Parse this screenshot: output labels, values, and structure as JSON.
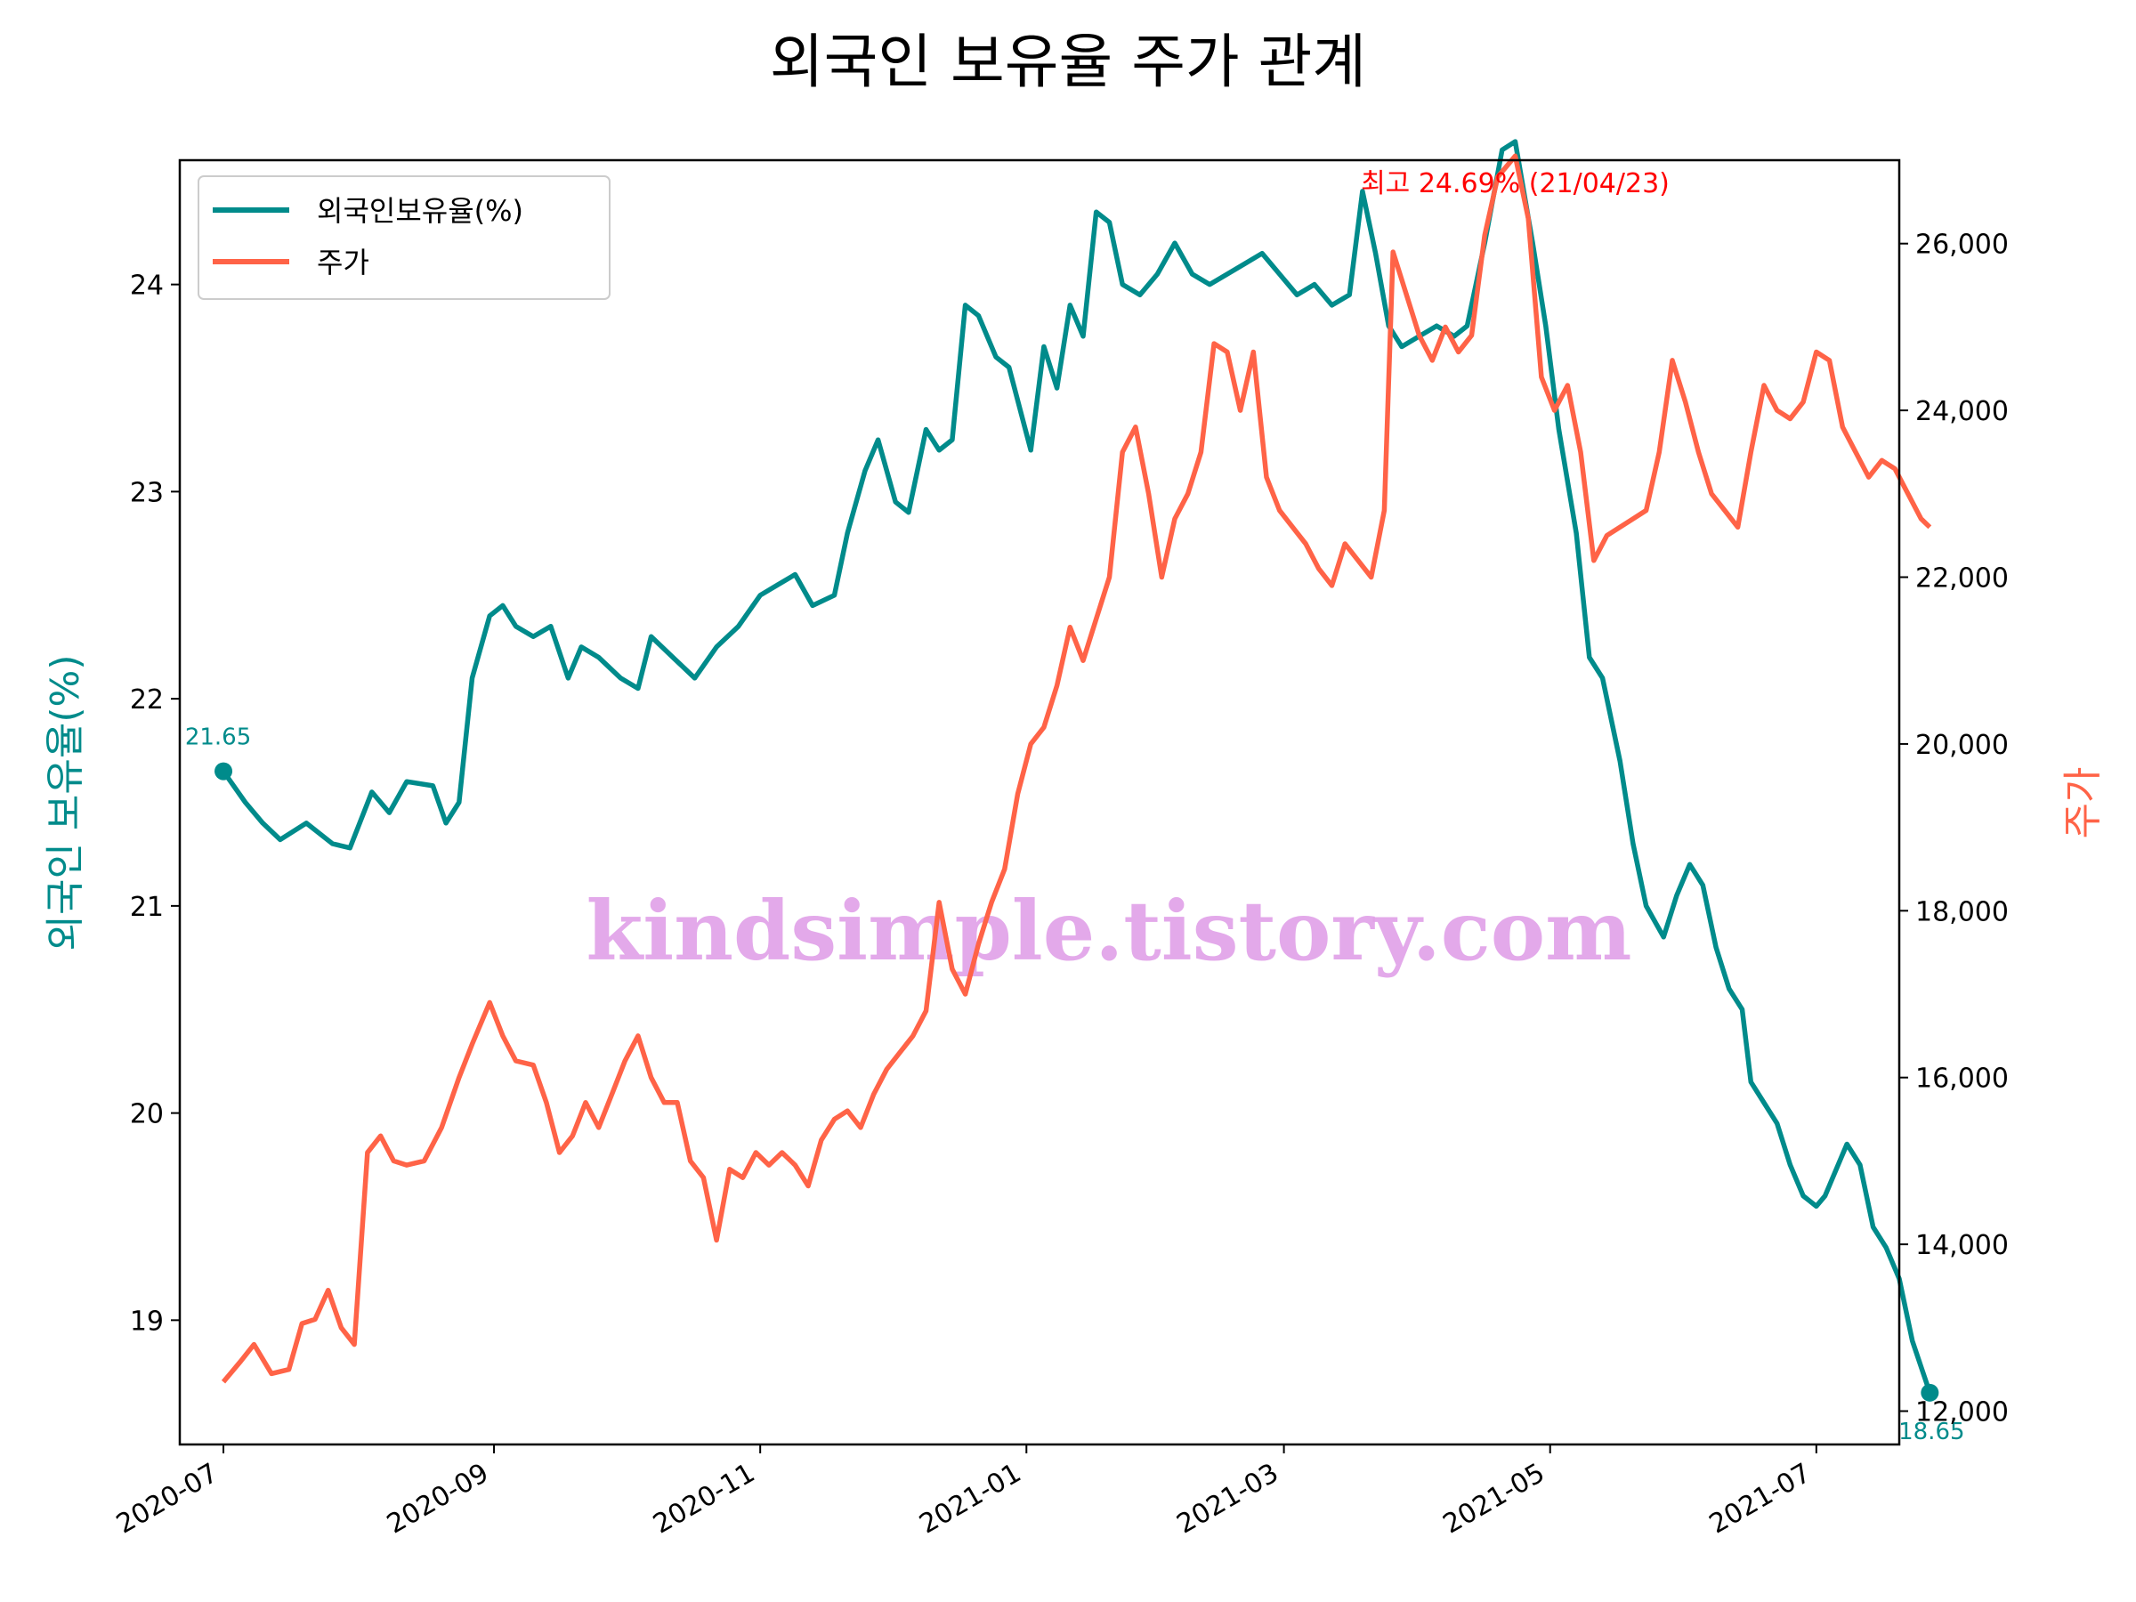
{
  "chart_data": {
    "type": "line",
    "title": "외국인 보유율 주가 관계",
    "ylabel_left": "외국인 보유율(%)",
    "ylabel_right": "주가",
    "colors": {
      "foreign": "#008b8b",
      "price": "#ff6347",
      "peak": "#ff0000",
      "watermark": "#e0a0e8"
    },
    "x_range": [
      "2020-06-21",
      "2021-07-20"
    ],
    "y_left_range": [
      18.4,
      24.6
    ],
    "y_right_range": [
      11600,
      27000
    ],
    "x_ticks": [
      "2020-07",
      "2020-09",
      "2020-11",
      "2021-01",
      "2021-03",
      "2021-05",
      "2021-07"
    ],
    "y_left_ticks": [
      "19",
      "20",
      "21",
      "22",
      "23",
      "24"
    ],
    "y_right_ticks": [
      "12,000",
      "14,000",
      "16,000",
      "18,000",
      "20,000",
      "22,000",
      "24,000",
      "26,000"
    ],
    "legend": {
      "position": "upper left",
      "entries": [
        "외국인보유율(%)",
        "주가"
      ]
    },
    "start_annotation": "21.65",
    "end_annotation": "18.65",
    "peak_annotation": "최고 24.69% (21/04/23)",
    "watermark": "kindsimple.tistory.com",
    "series": [
      {
        "name": "외국인보유율(%)",
        "points": [
          [
            "2020-07-01",
            21.65
          ],
          [
            "2020-07-06",
            21.5
          ],
          [
            "2020-07-10",
            21.4
          ],
          [
            "2020-07-14",
            21.32
          ],
          [
            "2020-07-20",
            21.4
          ],
          [
            "2020-07-26",
            21.3
          ],
          [
            "2020-07-30",
            21.28
          ],
          [
            "2020-08-04",
            21.55
          ],
          [
            "2020-08-08",
            21.45
          ],
          [
            "2020-08-12",
            21.6
          ],
          [
            "2020-08-18",
            21.58
          ],
          [
            "2020-08-21",
            21.4
          ],
          [
            "2020-08-24",
            21.5
          ],
          [
            "2020-08-27",
            22.1
          ],
          [
            "2020-08-31",
            22.4
          ],
          [
            "2020-09-03",
            22.45
          ],
          [
            "2020-09-06",
            22.35
          ],
          [
            "2020-09-10",
            22.3
          ],
          [
            "2020-09-14",
            22.35
          ],
          [
            "2020-09-18",
            22.1
          ],
          [
            "2020-09-21",
            22.25
          ],
          [
            "2020-09-25",
            22.2
          ],
          [
            "2020-09-30",
            22.1
          ],
          [
            "2020-10-04",
            22.05
          ],
          [
            "2020-10-07",
            22.3
          ],
          [
            "2020-10-12",
            22.2
          ],
          [
            "2020-10-17",
            22.1
          ],
          [
            "2020-10-22",
            22.25
          ],
          [
            "2020-10-27",
            22.35
          ],
          [
            "2020-11-01",
            22.5
          ],
          [
            "2020-11-05",
            22.55
          ],
          [
            "2020-11-09",
            22.6
          ],
          [
            "2020-11-13",
            22.45
          ],
          [
            "2020-11-18",
            22.5
          ],
          [
            "2020-11-21",
            22.8
          ],
          [
            "2020-11-25",
            23.1
          ],
          [
            "2020-11-28",
            23.25
          ],
          [
            "2020-12-02",
            22.95
          ],
          [
            "2020-12-05",
            22.9
          ],
          [
            "2020-12-09",
            23.3
          ],
          [
            "2020-12-12",
            23.2
          ],
          [
            "2020-12-15",
            23.25
          ],
          [
            "2020-12-18",
            23.9
          ],
          [
            "2020-12-21",
            23.85
          ],
          [
            "2020-12-25",
            23.65
          ],
          [
            "2020-12-28",
            23.6
          ],
          [
            "2021-01-02",
            23.2
          ],
          [
            "2021-01-05",
            23.7
          ],
          [
            "2021-01-08",
            23.5
          ],
          [
            "2021-01-11",
            23.9
          ],
          [
            "2021-01-14",
            23.75
          ],
          [
            "2021-01-17",
            24.35
          ],
          [
            "2021-01-20",
            24.3
          ],
          [
            "2021-01-23",
            24.0
          ],
          [
            "2021-01-27",
            23.95
          ],
          [
            "2021-01-31",
            24.05
          ],
          [
            "2021-02-04",
            24.2
          ],
          [
            "2021-02-08",
            24.05
          ],
          [
            "2021-02-12",
            24.0
          ],
          [
            "2021-02-16",
            24.05
          ],
          [
            "2021-02-20",
            24.1
          ],
          [
            "2021-02-24",
            24.15
          ],
          [
            "2021-02-28",
            24.05
          ],
          [
            "2021-03-04",
            23.95
          ],
          [
            "2021-03-08",
            24.0
          ],
          [
            "2021-03-12",
            23.9
          ],
          [
            "2021-03-16",
            23.95
          ],
          [
            "2021-03-19",
            24.45
          ],
          [
            "2021-03-22",
            24.15
          ],
          [
            "2021-03-25",
            23.8
          ],
          [
            "2021-03-28",
            23.7
          ],
          [
            "2021-04-01",
            23.75
          ],
          [
            "2021-04-05",
            23.8
          ],
          [
            "2021-04-09",
            23.75
          ],
          [
            "2021-04-12",
            23.8
          ],
          [
            "2021-04-16",
            24.2
          ],
          [
            "2021-04-20",
            24.65
          ],
          [
            "2021-04-23",
            24.69
          ],
          [
            "2021-04-27",
            24.2
          ],
          [
            "2021-04-30",
            23.8
          ],
          [
            "2021-05-03",
            23.3
          ],
          [
            "2021-05-07",
            22.8
          ],
          [
            "2021-05-10",
            22.2
          ],
          [
            "2021-05-13",
            22.1
          ],
          [
            "2021-05-17",
            21.7
          ],
          [
            "2021-05-20",
            21.3
          ],
          [
            "2021-05-23",
            21.0
          ],
          [
            "2021-05-27",
            20.85
          ],
          [
            "2021-05-30",
            21.05
          ],
          [
            "2021-06-02",
            21.2
          ],
          [
            "2021-06-05",
            21.1
          ],
          [
            "2021-06-08",
            20.8
          ],
          [
            "2021-06-11",
            20.6
          ],
          [
            "2021-06-14",
            20.5
          ],
          [
            "2021-06-16",
            20.15
          ],
          [
            "2021-06-19",
            20.05
          ],
          [
            "2021-06-22",
            19.95
          ],
          [
            "2021-06-25",
            19.75
          ],
          [
            "2021-06-28",
            19.6
          ],
          [
            "2021-07-01",
            19.55
          ],
          [
            "2021-07-03",
            19.6
          ],
          [
            "2021-07-05",
            19.7
          ],
          [
            "2021-07-08",
            19.85
          ],
          [
            "2021-07-11",
            19.75
          ],
          [
            "2021-07-14",
            19.45
          ],
          [
            "2021-07-17",
            19.35
          ],
          [
            "2021-07-20",
            19.2
          ],
          [
            "2021-07-23",
            18.9
          ],
          [
            "2021-07-27",
            18.65
          ]
        ]
      },
      {
        "name": "주가",
        "points": [
          [
            "2020-07-01",
            12350
          ],
          [
            "2020-07-05",
            12600
          ],
          [
            "2020-07-08",
            12800
          ],
          [
            "2020-07-12",
            12450
          ],
          [
            "2020-07-16",
            12500
          ],
          [
            "2020-07-19",
            13050
          ],
          [
            "2020-07-22",
            13100
          ],
          [
            "2020-07-25",
            13450
          ],
          [
            "2020-07-28",
            13000
          ],
          [
            "2020-07-31",
            12800
          ],
          [
            "2020-08-03",
            15100
          ],
          [
            "2020-08-06",
            15300
          ],
          [
            "2020-08-09",
            15000
          ],
          [
            "2020-08-12",
            14950
          ],
          [
            "2020-08-16",
            15000
          ],
          [
            "2020-08-20",
            15400
          ],
          [
            "2020-08-24",
            16000
          ],
          [
            "2020-08-27",
            16400
          ],
          [
            "2020-08-31",
            16900
          ],
          [
            "2020-09-03",
            16500
          ],
          [
            "2020-09-06",
            16200
          ],
          [
            "2020-09-10",
            16150
          ],
          [
            "2020-09-13",
            15700
          ],
          [
            "2020-09-16",
            15100
          ],
          [
            "2020-09-19",
            15300
          ],
          [
            "2020-09-22",
            15700
          ],
          [
            "2020-09-25",
            15400
          ],
          [
            "2020-09-28",
            15800
          ],
          [
            "2020-10-01",
            16200
          ],
          [
            "2020-10-04",
            16500
          ],
          [
            "2020-10-07",
            16000
          ],
          [
            "2020-10-10",
            15700
          ],
          [
            "2020-10-13",
            15700
          ],
          [
            "2020-10-16",
            15000
          ],
          [
            "2020-10-19",
            14800
          ],
          [
            "2020-10-22",
            14050
          ],
          [
            "2020-10-25",
            14900
          ],
          [
            "2020-10-28",
            14800
          ],
          [
            "2020-10-31",
            15100
          ],
          [
            "2020-11-03",
            14950
          ],
          [
            "2020-11-06",
            15100
          ],
          [
            "2020-11-09",
            14950
          ],
          [
            "2020-11-12",
            14700
          ],
          [
            "2020-11-15",
            15250
          ],
          [
            "2020-11-18",
            15500
          ],
          [
            "2020-11-21",
            15600
          ],
          [
            "2020-11-24",
            15400
          ],
          [
            "2020-11-27",
            15800
          ],
          [
            "2020-11-30",
            16100
          ],
          [
            "2020-12-03",
            16300
          ],
          [
            "2020-12-06",
            16500
          ],
          [
            "2020-12-09",
            16800
          ],
          [
            "2020-12-12",
            18100
          ],
          [
            "2020-12-15",
            17300
          ],
          [
            "2020-12-18",
            17000
          ],
          [
            "2020-12-21",
            17600
          ],
          [
            "2020-12-24",
            18100
          ],
          [
            "2020-12-27",
            18500
          ],
          [
            "2020-12-30",
            19400
          ],
          [
            "2021-01-02",
            20000
          ],
          [
            "2021-01-05",
            20200
          ],
          [
            "2021-01-08",
            20700
          ],
          [
            "2021-01-11",
            21400
          ],
          [
            "2021-01-14",
            21000
          ],
          [
            "2021-01-17",
            21500
          ],
          [
            "2021-01-20",
            22000
          ],
          [
            "2021-01-23",
            23500
          ],
          [
            "2021-01-26",
            23800
          ],
          [
            "2021-01-29",
            23000
          ],
          [
            "2021-02-01",
            22000
          ],
          [
            "2021-02-04",
            22700
          ],
          [
            "2021-02-07",
            23000
          ],
          [
            "2021-02-10",
            23500
          ],
          [
            "2021-02-13",
            24800
          ],
          [
            "2021-02-16",
            24700
          ],
          [
            "2021-02-19",
            24000
          ],
          [
            "2021-02-22",
            24700
          ],
          [
            "2021-02-25",
            23200
          ],
          [
            "2021-02-28",
            22800
          ],
          [
            "2021-03-03",
            22600
          ],
          [
            "2021-03-06",
            22400
          ],
          [
            "2021-03-09",
            22100
          ],
          [
            "2021-03-12",
            21900
          ],
          [
            "2021-03-15",
            22400
          ],
          [
            "2021-03-18",
            22200
          ],
          [
            "2021-03-21",
            22000
          ],
          [
            "2021-03-24",
            22800
          ],
          [
            "2021-03-26",
            25900
          ],
          [
            "2021-03-29",
            25400
          ],
          [
            "2021-04-01",
            24900
          ],
          [
            "2021-04-04",
            24600
          ],
          [
            "2021-04-07",
            25000
          ],
          [
            "2021-04-10",
            24700
          ],
          [
            "2021-04-13",
            24900
          ],
          [
            "2021-04-16",
            26100
          ],
          [
            "2021-04-19",
            26800
          ],
          [
            "2021-04-23",
            27050
          ],
          [
            "2021-04-26",
            26300
          ],
          [
            "2021-04-29",
            24400
          ],
          [
            "2021-05-02",
            24000
          ],
          [
            "2021-05-05",
            24300
          ],
          [
            "2021-05-08",
            23500
          ],
          [
            "2021-05-11",
            22200
          ],
          [
            "2021-05-14",
            22500
          ],
          [
            "2021-05-17",
            22600
          ],
          [
            "2021-05-20",
            22700
          ],
          [
            "2021-05-23",
            22800
          ],
          [
            "2021-05-26",
            23500
          ],
          [
            "2021-05-29",
            24600
          ],
          [
            "2021-06-01",
            24100
          ],
          [
            "2021-06-04",
            23500
          ],
          [
            "2021-06-07",
            23000
          ],
          [
            "2021-06-10",
            22800
          ],
          [
            "2021-06-13",
            22600
          ],
          [
            "2021-06-16",
            23500
          ],
          [
            "2021-06-19",
            24300
          ],
          [
            "2021-06-22",
            24000
          ],
          [
            "2021-06-25",
            23900
          ],
          [
            "2021-06-28",
            24100
          ],
          [
            "2021-07-01",
            24700
          ],
          [
            "2021-07-04",
            24600
          ],
          [
            "2021-07-07",
            23800
          ],
          [
            "2021-07-10",
            23500
          ],
          [
            "2021-07-13",
            23200
          ],
          [
            "2021-07-16",
            23400
          ],
          [
            "2021-07-19",
            23300
          ],
          [
            "2021-07-22",
            23000
          ],
          [
            "2021-07-25",
            22700
          ],
          [
            "2021-07-27",
            22600
          ]
        ]
      }
    ]
  }
}
